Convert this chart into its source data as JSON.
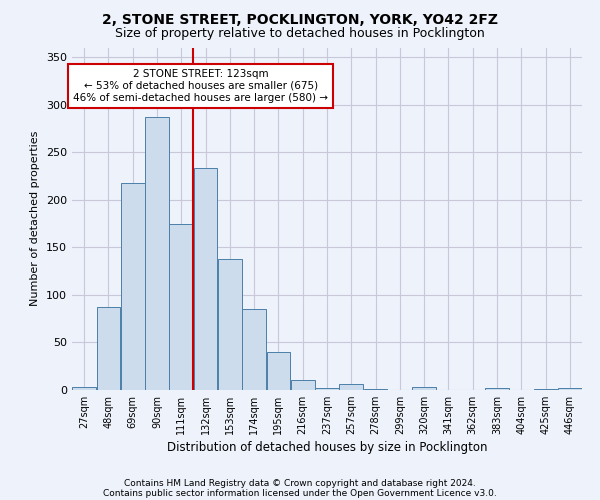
{
  "title1": "2, STONE STREET, POCKLINGTON, YORK, YO42 2FZ",
  "title2": "Size of property relative to detached houses in Pocklington",
  "xlabel": "Distribution of detached houses by size in Pocklington",
  "ylabel": "Number of detached properties",
  "footer1": "Contains HM Land Registry data © Crown copyright and database right 2024.",
  "footer2": "Contains public sector information licensed under the Open Government Licence v3.0.",
  "annotation_line1": "2 STONE STREET: 123sqm",
  "annotation_line2": "← 53% of detached houses are smaller (675)",
  "annotation_line3": "46% of semi-detached houses are larger (580) →",
  "bins": [
    "27sqm",
    "48sqm",
    "69sqm",
    "90sqm",
    "111sqm",
    "132sqm",
    "153sqm",
    "174sqm",
    "195sqm",
    "216sqm",
    "237sqm",
    "257sqm",
    "278sqm",
    "299sqm",
    "320sqm",
    "341sqm",
    "362sqm",
    "383sqm",
    "404sqm",
    "425sqm",
    "446sqm"
  ],
  "values": [
    3,
    87,
    218,
    287,
    174,
    233,
    138,
    85,
    40,
    10,
    2,
    6,
    1,
    0,
    3,
    0,
    0,
    2,
    0,
    1,
    2
  ],
  "bar_color": "#ccdcec",
  "bar_edge_color": "#4a7fa8",
  "vline_color": "#cc0000",
  "ylim": [
    0,
    360
  ],
  "yticks": [
    0,
    50,
    100,
    150,
    200,
    250,
    300,
    350
  ],
  "grid_color": "#c8c8d8",
  "bg_color": "#eef2fb",
  "annotation_box_color": "#cc0000",
  "annotation_fill": "#ffffff",
  "title1_fontsize": 10,
  "title2_fontsize": 9
}
